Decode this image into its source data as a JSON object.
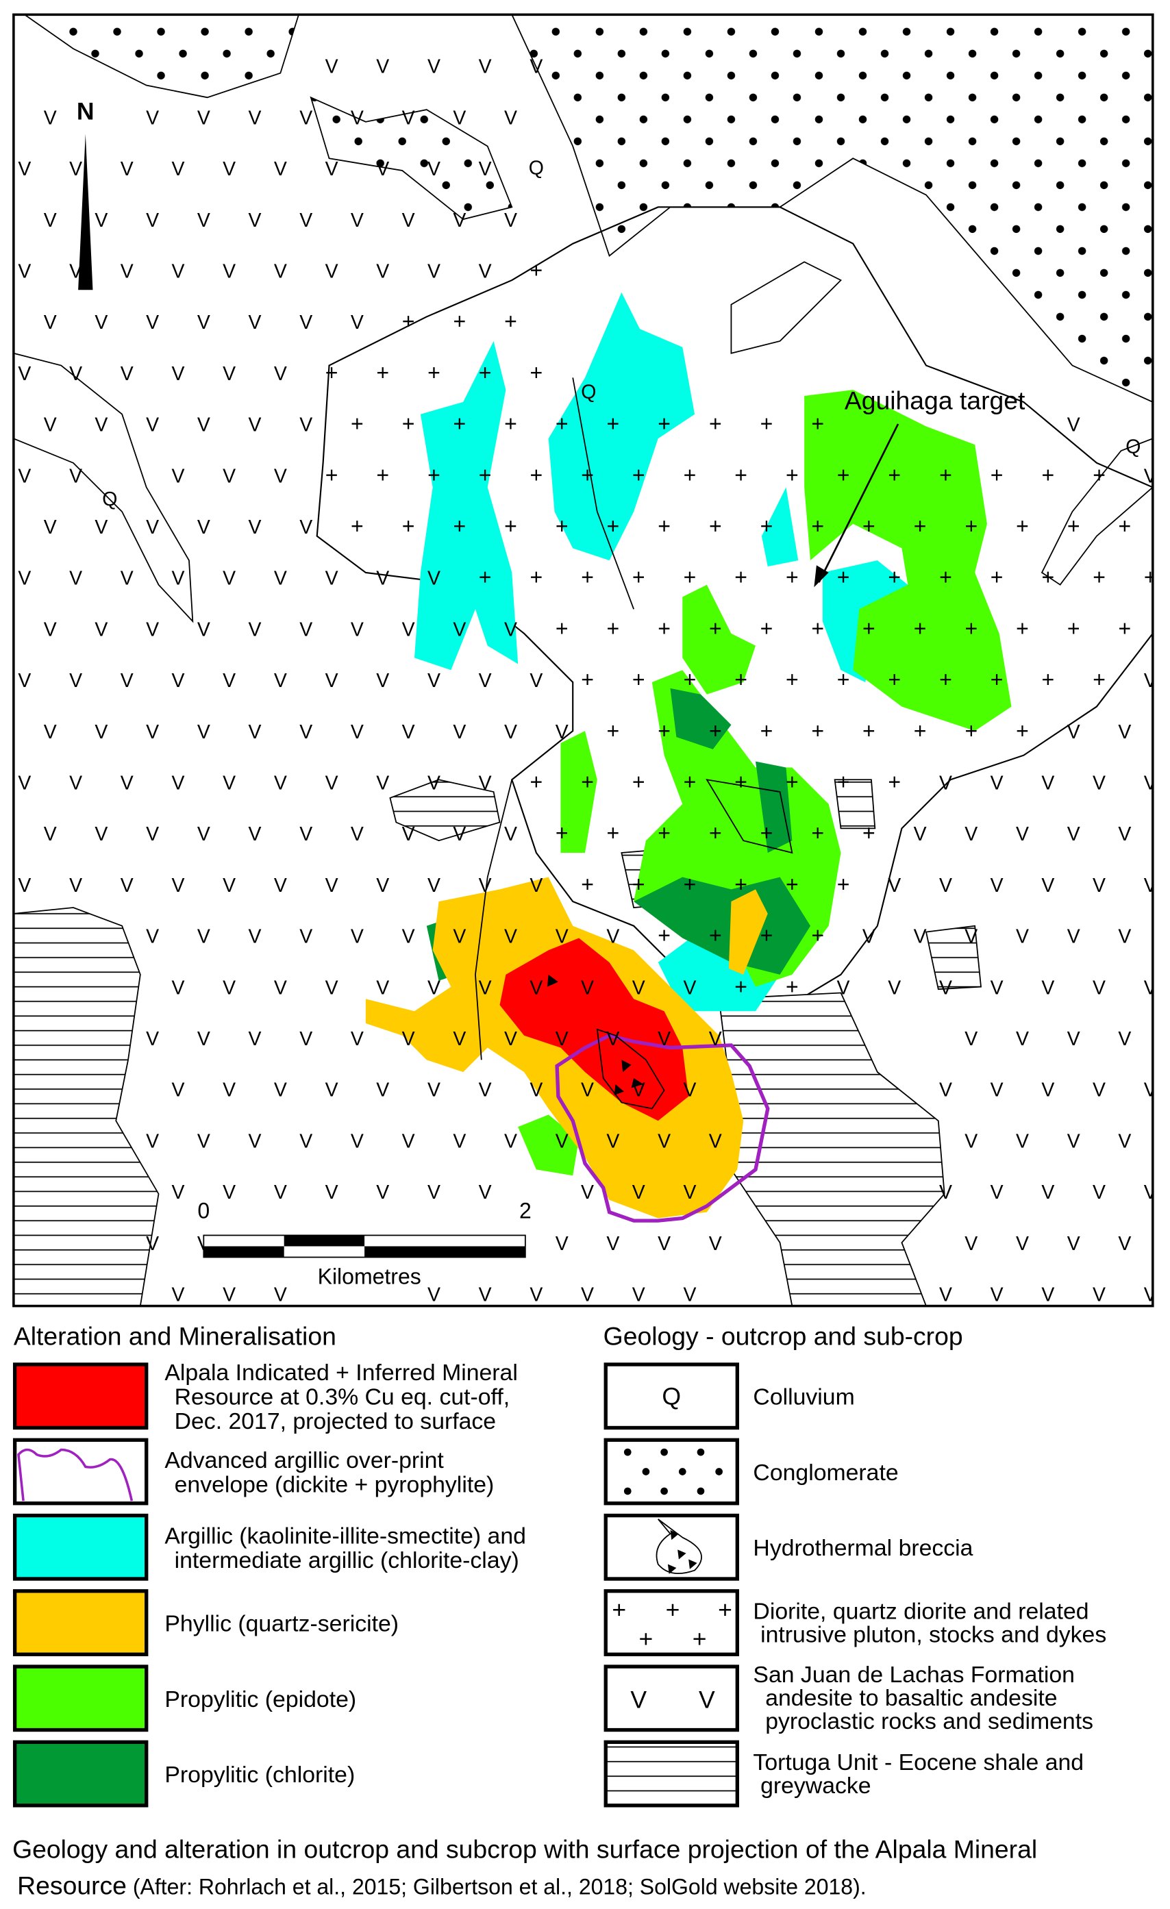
{
  "map": {
    "north_label": "N",
    "target_label": "Aguihaga target",
    "colluvium_symbol": "Q",
    "volcanic_symbol": "V",
    "intrusive_symbol": "+",
    "scale_bar": {
      "start": "0",
      "end": "2",
      "unit": "Kilometres"
    }
  },
  "legend": {
    "alteration": {
      "title": "Alteration and Mineralisation",
      "items": [
        {
          "lines": [
            "Alpala Indicated + Inferred Mineral",
            "Resource at 0.3% Cu eq. cut-off,",
            "Dec. 2017, projected to surface"
          ],
          "color": "#ff0000"
        },
        {
          "lines": [
            "Advanced argillic over-print",
            "envelope (dickite + pyrophylite)"
          ],
          "color": "#a020c0"
        },
        {
          "lines": [
            "Argillic (kaolinite-illite-smectite) and",
            "intermediate argillic (chlorite-clay)"
          ],
          "color": "#00ffe6"
        },
        {
          "lines": [
            "Phyllic (quartz-sericite)"
          ],
          "color": "#ffcc00"
        },
        {
          "lines": [
            "Propylitic (epidote)"
          ],
          "color": "#4cff00"
        },
        {
          "lines": [
            "Propylitic (chlorite)"
          ],
          "color": "#009933"
        }
      ]
    },
    "geology": {
      "title": "Geology - outcrop and sub-crop",
      "items": [
        {
          "lines": [
            "Colluvium"
          ],
          "symbol": "Q"
        },
        {
          "lines": [
            "Conglomerate"
          ],
          "symbol": "dots"
        },
        {
          "lines": [
            "Hydrothermal breccia"
          ],
          "symbol": "breccia"
        },
        {
          "lines": [
            "Diorite, quartz diorite and related",
            "intrusive pluton, stocks and dykes"
          ],
          "symbol": "+"
        },
        {
          "lines": [
            "San Juan de Lachas Formation",
            "andesite to basaltic andesite",
            "pyroclastic rocks and sediments"
          ],
          "symbol": "V"
        },
        {
          "lines": [
            "Tortuga Unit - Eocene shale and",
            "greywacke"
          ],
          "symbol": "lines"
        }
      ]
    }
  },
  "caption": {
    "line1": "Geology and alteration in outcrop and subcrop with surface projection of the Alpala Mineral",
    "line2_main": "Resource",
    "line2_refs": "(After: Rohrlach et al., 2015; Gilbertson et al., 2018; SolGold website 2018)."
  }
}
